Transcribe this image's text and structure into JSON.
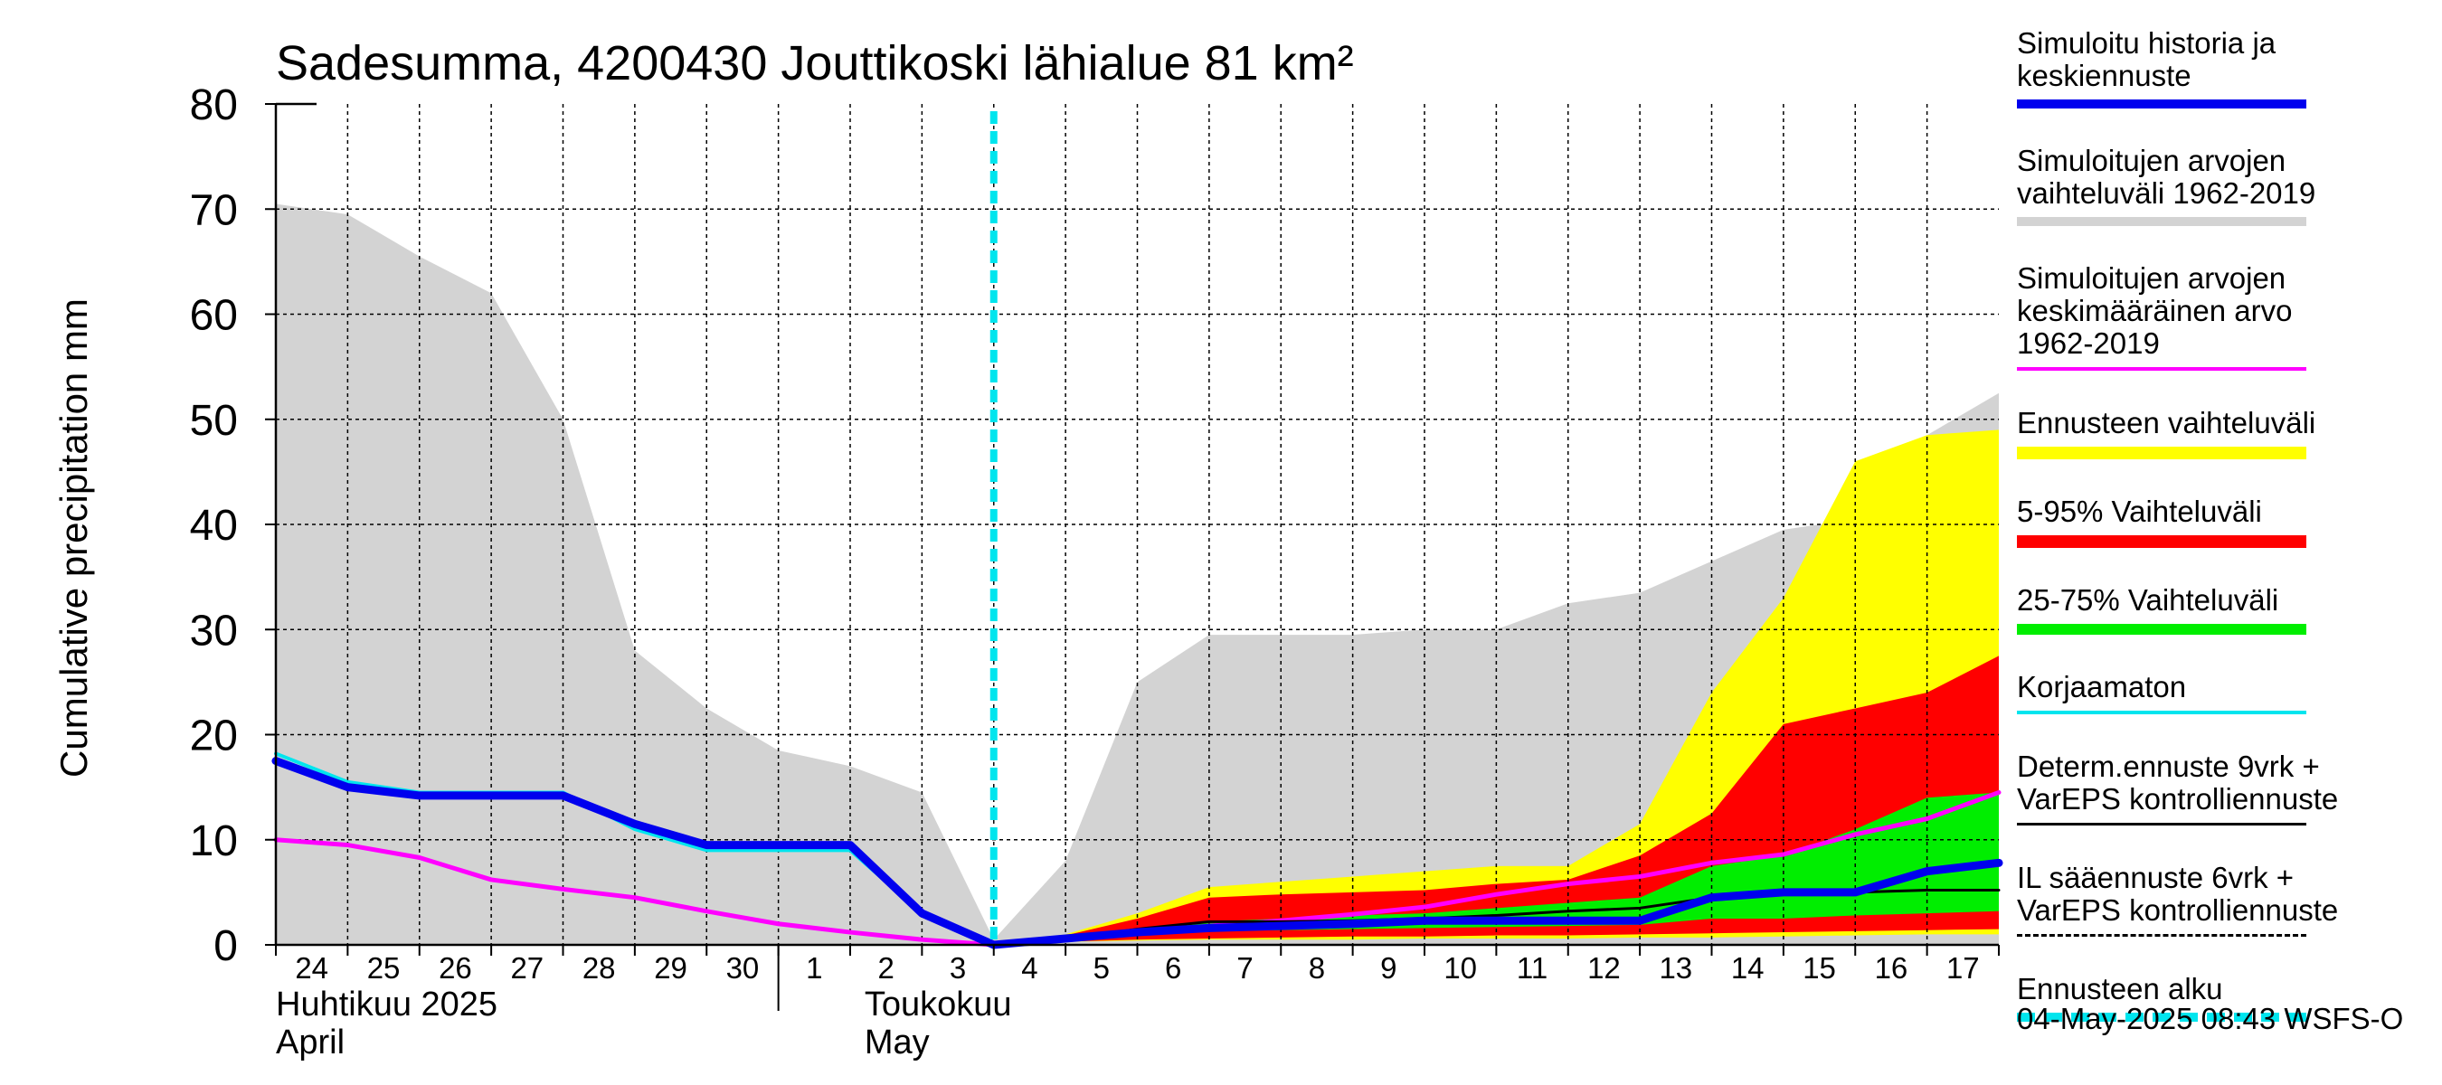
{
  "chart_data": {
    "type": "area",
    "title": "Sadesumma, 4200430 Jouttikoski lähialue 81 km²",
    "ylabel": "Cumulative precipitation   mm",
    "ylim": [
      0,
      80
    ],
    "yticks": [
      "0",
      "10",
      "20",
      "30",
      "40",
      "50",
      "60",
      "70",
      "80"
    ],
    "xlim": [
      0,
      24
    ],
    "xtick_labels": [
      "24",
      "25",
      "26",
      "27",
      "28",
      "29",
      "30",
      "1",
      "2",
      "3",
      "4",
      "5",
      "6",
      "7",
      "8",
      "9",
      "10",
      "11",
      "12",
      "13",
      "14",
      "15",
      "16",
      "17"
    ],
    "month_labels": [
      {
        "fi": "Huhtikuu  2025",
        "en": "April",
        "x": 0
      },
      {
        "fi": "Toukokuu",
        "en": "May",
        "x": 8.2
      }
    ],
    "month_divider_x": 7,
    "forecast_start_x": 10,
    "grid": true,
    "series": [
      {
        "name": "Simuloitujen arvojen vaihteluväli 1962-2019",
        "kind": "band",
        "color": "#d3d3d3",
        "x": [
          0,
          1,
          2,
          3,
          4,
          5,
          6,
          7,
          8,
          9,
          10,
          11,
          12,
          13,
          14,
          15,
          16,
          17,
          18,
          19,
          20,
          21,
          22,
          23,
          24
        ],
        "lower": [
          0,
          0,
          0,
          0,
          0,
          0,
          0,
          0,
          0,
          0,
          0,
          0,
          0,
          0,
          0,
          0,
          0,
          0,
          0,
          0,
          0,
          0,
          0,
          0,
          0
        ],
        "upper": [
          70.5,
          69.5,
          65.5,
          62,
          50,
          28,
          22.5,
          18.5,
          17,
          14.5,
          0.5,
          8,
          25,
          29.5,
          29.5,
          29.5,
          30,
          30,
          32.5,
          33.5,
          36.5,
          39.5,
          40.5,
          48.5,
          52.5
        ]
      },
      {
        "name": "Ennusteen vaihteluväli",
        "kind": "band",
        "color": "#ffff00",
        "x": [
          10,
          11,
          12,
          13,
          14,
          15,
          16,
          17,
          18,
          19,
          20,
          21,
          22,
          23,
          24
        ],
        "lower": [
          0,
          0.3,
          0.4,
          0.5,
          0.5,
          0.5,
          0.6,
          0.6,
          0.6,
          0.7,
          0.7,
          0.8,
          0.9,
          1.0,
          1.0
        ],
        "upper": [
          0,
          1.0,
          3.0,
          5.5,
          6.0,
          6.5,
          7.0,
          7.5,
          7.5,
          11.5,
          24,
          33,
          46,
          48.5,
          49
        ]
      },
      {
        "name": "5-95% Vaihteluväli",
        "kind": "band",
        "color": "#ff0000",
        "x": [
          10,
          11,
          12,
          13,
          14,
          15,
          16,
          17,
          18,
          19,
          20,
          21,
          22,
          23,
          24
        ],
        "lower": [
          0,
          0.3,
          0.5,
          0.6,
          0.7,
          0.8,
          0.8,
          0.9,
          0.9,
          1.0,
          1.1,
          1.2,
          1.3,
          1.4,
          1.5
        ],
        "upper": [
          0,
          0.9,
          2.5,
          4.5,
          4.8,
          5.0,
          5.2,
          5.8,
          6.2,
          8.5,
          12.5,
          21,
          22.5,
          24,
          27.5
        ]
      },
      {
        "name": "25-75% Vaihteluväli",
        "kind": "band",
        "color": "#00ee00",
        "x": [
          10,
          11,
          12,
          13,
          14,
          15,
          16,
          17,
          18,
          19,
          20,
          21,
          22,
          23,
          24
        ],
        "lower": [
          0,
          0.5,
          1.0,
          1.3,
          1.4,
          1.5,
          1.6,
          1.7,
          1.8,
          1.9,
          2.5,
          2.5,
          2.8,
          3.0,
          3.2
        ],
        "upper": [
          0,
          0.7,
          1.5,
          2.2,
          2.5,
          2.8,
          3.0,
          3.5,
          4.0,
          4.5,
          7.5,
          8.5,
          11,
          14,
          14.5
        ]
      },
      {
        "name": "Simuloitujen arvojen keskimääräinen arvo 1962-2019",
        "kind": "line",
        "color": "#ff00ff",
        "width": 5,
        "x": [
          0,
          1,
          2,
          3,
          4,
          5,
          6,
          7,
          8,
          9,
          10,
          11,
          12,
          13,
          14,
          15,
          16,
          17,
          18,
          19,
          20,
          21,
          22,
          23,
          24
        ],
        "y": [
          10,
          9.5,
          8.3,
          6.2,
          5.3,
          4.5,
          3.2,
          2,
          1.2,
          0.5,
          0,
          0.6,
          1.2,
          1.8,
          2.3,
          2.9,
          3.6,
          4.8,
          5.8,
          6.5,
          7.8,
          8.6,
          10.5,
          12,
          14.5
        ]
      },
      {
        "name": "Korjaamaton",
        "kind": "line",
        "color": "#00e5ee",
        "width": 4,
        "x": [
          0,
          1,
          2,
          3,
          4,
          5,
          6,
          7,
          8,
          9,
          10
        ],
        "y": [
          18.2,
          15.5,
          14.5,
          14.5,
          14.5,
          11,
          9,
          9,
          9,
          3,
          0
        ]
      },
      {
        "name": "Determ.ennuste 9vrk + VarEPS kontrolliennuste",
        "kind": "line",
        "color": "#000000",
        "width": 3,
        "x": [
          10,
          11,
          12,
          13,
          14,
          15,
          16,
          17,
          18,
          19,
          20,
          21,
          22,
          23,
          24
        ],
        "y": [
          0,
          0.5,
          1.5,
          2.2,
          2.2,
          2.3,
          2.5,
          2.8,
          3.2,
          3.5,
          4.5,
          4.8,
          5.0,
          5.2,
          5.2
        ]
      },
      {
        "name": "Simuloitu historia ja keskiennuste",
        "kind": "line",
        "color": "#0000ee",
        "width": 9,
        "x": [
          0,
          1,
          2,
          3,
          4,
          5,
          6,
          7,
          8,
          9,
          10,
          11,
          12,
          13,
          14,
          15,
          16,
          17,
          18,
          19,
          20,
          21,
          22,
          23,
          24
        ],
        "y": [
          17.5,
          15,
          14.2,
          14.2,
          14.2,
          11.5,
          9.5,
          9.5,
          9.5,
          3,
          0,
          0.6,
          1.2,
          1.6,
          1.8,
          2.0,
          2.3,
          2.3,
          2.3,
          2.3,
          4.5,
          5.0,
          5.0,
          7.0,
          7.8
        ]
      }
    ]
  },
  "legend": [
    {
      "label": "Simuloitu historia ja\nkeskiennuste",
      "color": "#0000ee",
      "style": "solid",
      "thick": 10
    },
    {
      "label": "Simuloitujen arvojen\nvaihteluväli 1962-2019",
      "color": "#d3d3d3",
      "style": "solid",
      "thick": 10
    },
    {
      "label": "Simuloitujen arvojen\nkeskimääräinen arvo\n   1962-2019",
      "color": "#ff00ff",
      "style": "solid",
      "thick": 4
    },
    {
      "label": "Ennusteen vaihteluväli",
      "color": "#ffff00",
      "style": "solid",
      "thick": 14
    },
    {
      "label": "5-95% Vaihteluväli",
      "color": "#ff0000",
      "style": "solid",
      "thick": 14
    },
    {
      "label": "25-75% Vaihteluväli",
      "color": "#00ee00",
      "style": "solid",
      "thick": 12
    },
    {
      "label": "Korjaamaton",
      "color": "#00e5ee",
      "style": "solid",
      "thick": 4
    },
    {
      "label": "Determ.ennuste 9vrk +\nVarEPS kontrolliennuste",
      "color": "#000000",
      "style": "solid",
      "thick": 3
    },
    {
      "label": "IL sääennuste 6vrk  +\n  VarEPS kontrolliennuste",
      "color": "#000000",
      "style": "dashed",
      "thick": 3
    },
    {
      "label": "Ennusteen alku",
      "color": "#00e5ee",
      "style": "dashed",
      "thick": 10
    }
  ],
  "footer": "04-May-2025 08:43 WSFS-O"
}
